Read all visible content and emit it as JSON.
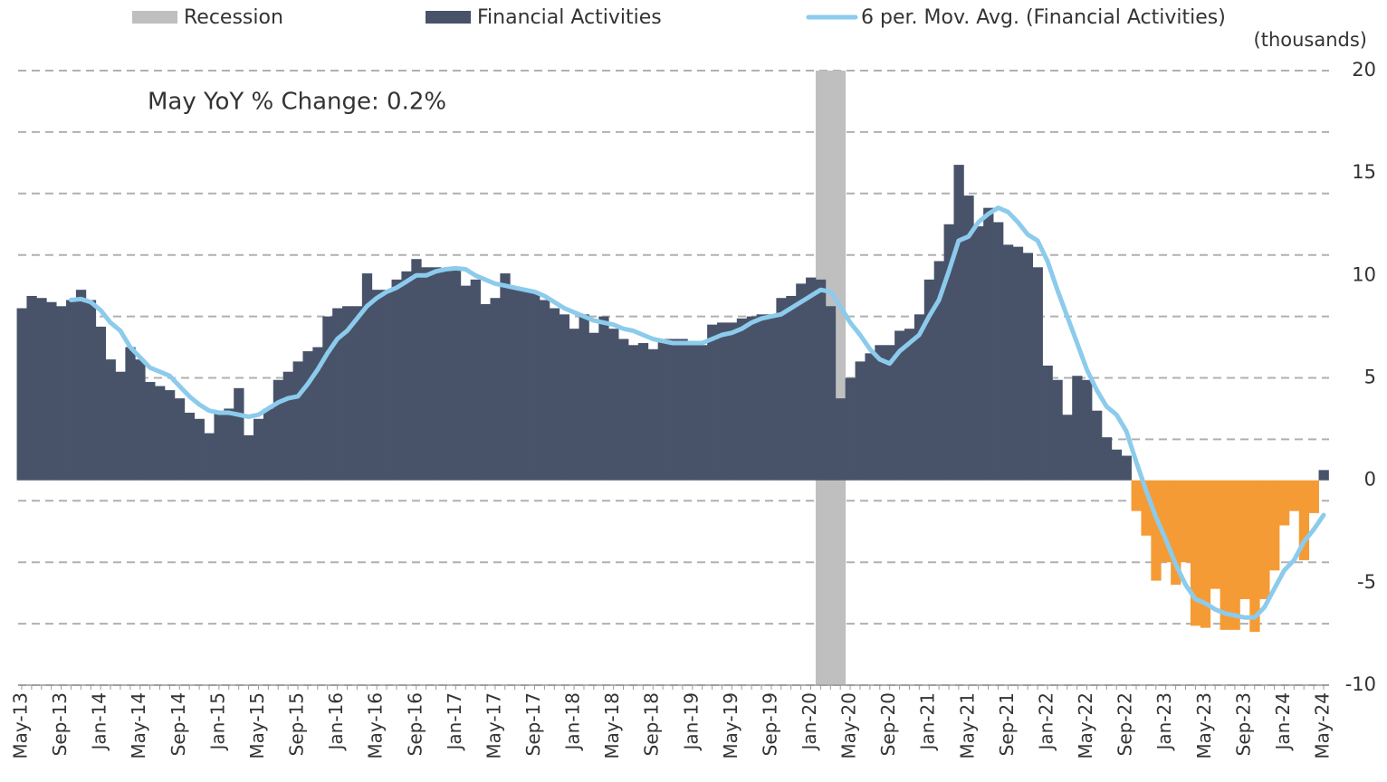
{
  "chart_data": {
    "type": "bar",
    "annotation": "May YoY % Change: 0.2%",
    "y_unit_label": "(thousands)",
    "categories": [
      "May-13",
      null,
      null,
      null,
      "Sep-13",
      null,
      null,
      null,
      "Jan-14",
      null,
      null,
      null,
      "May-14",
      null,
      null,
      null,
      "Sep-14",
      null,
      null,
      null,
      "Jan-15",
      null,
      null,
      null,
      "May-15",
      null,
      null,
      null,
      "Sep-15",
      null,
      null,
      null,
      "Jan-16",
      null,
      null,
      null,
      "May-16",
      null,
      null,
      null,
      "Sep-16",
      null,
      null,
      null,
      "Jan-17",
      null,
      null,
      null,
      "May-17",
      null,
      null,
      null,
      "Sep-17",
      null,
      null,
      null,
      "Jan-18",
      null,
      null,
      null,
      "May-18",
      null,
      null,
      null,
      "Sep-18",
      null,
      null,
      null,
      "Jan-19",
      null,
      null,
      null,
      "May-19",
      null,
      null,
      null,
      "Sep-19",
      null,
      null,
      null,
      "Jan-20",
      null,
      null,
      null,
      "May-20",
      null,
      null,
      null,
      "Sep-20",
      null,
      null,
      null,
      "Jan-21",
      null,
      null,
      null,
      "May-21",
      null,
      null,
      null,
      "Sep-21",
      null,
      null,
      null,
      "Jan-22",
      null,
      null,
      null,
      "May-22",
      null,
      null,
      null,
      "Sep-22",
      null,
      null,
      null,
      "Jan-23",
      null,
      null,
      null,
      "May-23",
      null,
      null,
      null,
      "Sep-23",
      null,
      null,
      null,
      "Jan-24",
      null,
      null,
      null,
      "May-24"
    ],
    "series": [
      {
        "name": "Recession",
        "type": "band",
        "color": "#bfbfbf",
        "values": [
          null,
          null,
          null,
          null,
          null,
          null,
          null,
          null,
          null,
          null,
          null,
          null,
          null,
          null,
          null,
          null,
          null,
          null,
          null,
          null,
          null,
          null,
          null,
          null,
          null,
          null,
          null,
          null,
          null,
          null,
          null,
          null,
          null,
          null,
          null,
          null,
          null,
          null,
          null,
          null,
          null,
          null,
          null,
          null,
          null,
          null,
          null,
          null,
          null,
          null,
          null,
          null,
          null,
          null,
          null,
          null,
          null,
          null,
          null,
          null,
          null,
          null,
          null,
          null,
          null,
          null,
          null,
          null,
          null,
          null,
          null,
          null,
          null,
          null,
          null,
          null,
          null,
          null,
          null,
          null,
          null,
          20,
          20,
          20,
          null,
          null,
          null,
          null,
          null,
          null,
          null,
          null,
          null,
          null,
          null,
          null,
          null,
          null,
          null,
          null,
          null,
          null,
          null,
          null,
          null,
          null,
          null,
          null,
          null,
          null,
          null,
          null,
          null,
          null,
          null,
          null,
          null,
          null,
          null,
          null,
          null,
          null,
          null,
          null,
          null,
          null,
          null,
          null,
          null,
          null,
          null,
          null,
          null
        ]
      },
      {
        "name": "Financial Activities",
        "type": "bar",
        "color": "#48536a",
        "negative_color": "#f59b35",
        "values": [
          8.4,
          9.0,
          8.9,
          8.7,
          8.5,
          8.8,
          9.3,
          8.8,
          7.5,
          5.9,
          5.3,
          6.5,
          5.9,
          4.8,
          4.6,
          4.4,
          4.0,
          3.3,
          3.0,
          2.3,
          3.3,
          3.5,
          4.5,
          2.2,
          3.0,
          3.5,
          4.9,
          5.3,
          5.8,
          6.3,
          6.5,
          8.0,
          8.4,
          8.5,
          8.5,
          10.1,
          9.3,
          9.3,
          9.8,
          10.2,
          10.8,
          10.4,
          10.4,
          10.3,
          10.3,
          9.5,
          9.8,
          8.6,
          8.9,
          10.1,
          9.4,
          9.3,
          9.2,
          8.8,
          8.4,
          8.1,
          7.4,
          8.1,
          7.2,
          8.0,
          7.4,
          6.9,
          6.6,
          6.7,
          6.4,
          6.9,
          6.9,
          6.9,
          6.6,
          6.6,
          7.6,
          7.7,
          7.7,
          7.9,
          8.0,
          8.1,
          8.1,
          8.9,
          9.0,
          9.6,
          9.9,
          9.8,
          8.5,
          4.0,
          5.0,
          5.8,
          6.2,
          6.6,
          6.6,
          7.3,
          7.4,
          8.1,
          9.8,
          10.7,
          12.5,
          15.4,
          13.9,
          12.4,
          13.3,
          12.6,
          11.5,
          11.4,
          11.1,
          10.4,
          5.6,
          4.9,
          3.2,
          5.1,
          4.9,
          3.4,
          2.1,
          1.5,
          1.2,
          -1.5,
          -2.7,
          -4.9,
          -4.0,
          -5.1,
          -4.0,
          -7.1,
          -7.2,
          -5.3,
          -7.3,
          -7.3,
          -5.8,
          -7.4,
          -5.8,
          -4.4,
          -2.2,
          -1.5,
          -3.9,
          -1.6,
          0.5
        ]
      },
      {
        "name": "6 per. Mov. Avg. (Financial Activities)",
        "type": "line",
        "color": "#8ccbec",
        "values": [
          null,
          null,
          null,
          null,
          null,
          8.8,
          8.85,
          8.7,
          8.3,
          7.7,
          7.3,
          6.5,
          6.0,
          5.5,
          5.3,
          5.1,
          4.6,
          4.1,
          3.7,
          3.4,
          3.3,
          3.3,
          3.2,
          3.1,
          3.2,
          3.5,
          3.8,
          4.0,
          4.1,
          4.7,
          5.4,
          6.2,
          6.9,
          7.3,
          7.9,
          8.5,
          8.9,
          9.2,
          9.4,
          9.7,
          10.0,
          10.0,
          10.2,
          10.3,
          10.35,
          10.3,
          10.0,
          9.8,
          9.6,
          9.5,
          9.4,
          9.3,
          9.2,
          9.0,
          8.7,
          8.4,
          8.2,
          8.0,
          7.8,
          7.7,
          7.6,
          7.4,
          7.3,
          7.1,
          6.9,
          6.8,
          6.7,
          6.7,
          6.7,
          6.7,
          6.9,
          7.1,
          7.2,
          7.4,
          7.7,
          7.9,
          8.0,
          8.1,
          8.4,
          8.7,
          9.0,
          9.3,
          9.2,
          8.5,
          7.7,
          7.1,
          6.4,
          5.9,
          5.7,
          6.3,
          6.7,
          7.1,
          8.0,
          8.8,
          10.2,
          11.7,
          11.9,
          12.6,
          13.0,
          13.3,
          13.1,
          12.6,
          12.0,
          11.7,
          10.7,
          9.3,
          8.0,
          6.7,
          5.4,
          4.4,
          3.6,
          3.2,
          2.4,
          0.9,
          -0.5,
          -1.8,
          -2.9,
          -4.1,
          -5.1,
          -5.8,
          -6.0,
          -6.3,
          -6.5,
          -6.6,
          -6.7,
          -6.7,
          -6.2,
          -5.3,
          -4.4,
          -3.9,
          -3.0,
          -2.4,
          -1.7
        ]
      }
    ],
    "ylim": [
      -10,
      20
    ],
    "yticks": [
      -10,
      -5,
      0,
      5,
      10,
      15,
      20
    ],
    "grid_lines": [
      -10,
      -7,
      -4,
      -1,
      2,
      5,
      8,
      11,
      14,
      17,
      20
    ],
    "legend": "top"
  }
}
